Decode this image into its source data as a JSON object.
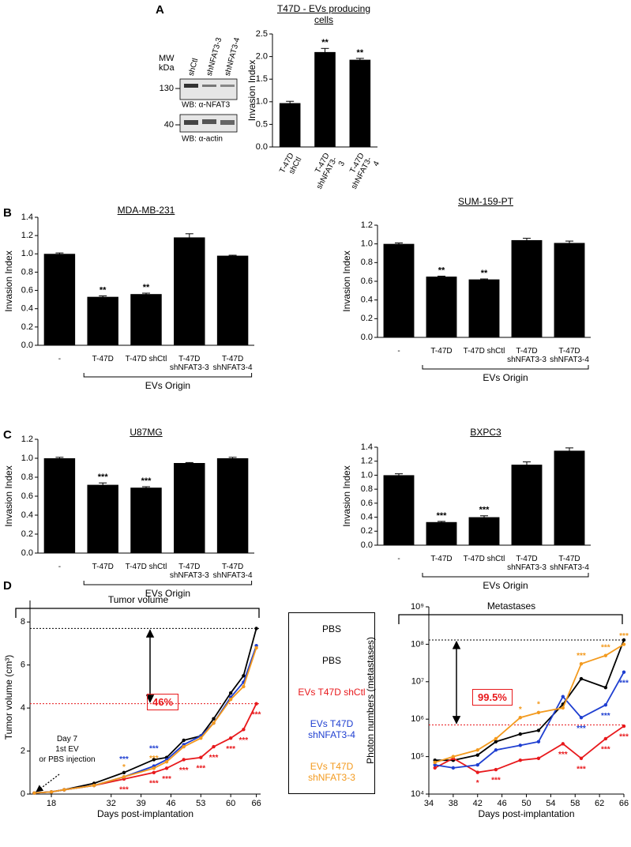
{
  "panels": [
    "A",
    "B",
    "C",
    "D"
  ],
  "blot": {
    "mw": "MW",
    "kda": "kDa",
    "marker_high": "130",
    "marker_low": "40",
    "lanes": [
      "shCtl",
      "shNFAT3-3",
      "shNFAT3-4"
    ],
    "wb_top": "WB: α-NFAT3",
    "wb_bottom": "WB: α-actin"
  },
  "legend_title": "PBS",
  "chart_data": [
    {
      "type": "bar",
      "title": "T47D - EVs producing cells",
      "ylabel": "Invasion Index",
      "categories": [
        "T-47D shCtl",
        "T-47D shNFAT3-3",
        "T-47D shNFAT3-4"
      ],
      "values": [
        0.97,
        2.1,
        1.93
      ],
      "errors": [
        0.04,
        0.08,
        0.03
      ],
      "significance": [
        null,
        "**",
        "**"
      ],
      "color": "#000000",
      "ylim": [
        0,
        2.5
      ],
      "yticks": [
        {
          "value": 0,
          "label": "0.0"
        },
        {
          "value": 0.5,
          "label": "0.5"
        },
        {
          "value": 1,
          "label": "1.0"
        },
        {
          "value": 1.5,
          "label": "1.5"
        },
        {
          "value": 2,
          "label": "2.0"
        },
        {
          "value": 2.5,
          "label": "2.5"
        }
      ]
    },
    {
      "type": "bar",
      "title": "MDA-MB-231",
      "ylabel": "Invasion Index",
      "group_label": "EVs Origin",
      "categories": [
        "-",
        "T-47D",
        "T-47D shCtl",
        "T-47D shNFAT3-3",
        "T-47D shNFAT3-4"
      ],
      "values": [
        1.0,
        0.53,
        0.56,
        1.18,
        0.98
      ],
      "errors": [
        0.01,
        0.01,
        0.01,
        0.04,
        0.005
      ],
      "significance": [
        null,
        "**",
        "**",
        null,
        null
      ],
      "color": "#000000",
      "ylim": [
        0,
        1.4
      ],
      "yticks": [
        {
          "value": 0,
          "label": "0.0"
        },
        {
          "value": 0.2,
          "label": "0.2"
        },
        {
          "value": 0.4,
          "label": "0.4"
        },
        {
          "value": 0.6,
          "label": "0.6"
        },
        {
          "value": 0.8,
          "label": "0.8"
        },
        {
          "value": 1,
          "label": "1.0"
        },
        {
          "value": 1.2,
          "label": "1.2"
        },
        {
          "value": 1.4,
          "label": "1.4"
        }
      ]
    },
    {
      "type": "bar",
      "title": "SUM-159-PT",
      "ylabel": "Invasion Index",
      "group_label": "EVs Origin",
      "categories": [
        "-",
        "T-47D",
        "T-47D shCtl",
        "T-47D shNFAT3-3",
        "T-47D shNFAT3-4"
      ],
      "values": [
        1.0,
        0.65,
        0.62,
        1.04,
        1.01
      ],
      "errors": [
        0.01,
        0.005,
        0.005,
        0.02,
        0.02
      ],
      "significance": [
        null,
        "**",
        "**",
        null,
        null
      ],
      "color": "#000000",
      "ylim": [
        0,
        1.2
      ],
      "yticks": [
        {
          "value": 0,
          "label": "0.0"
        },
        {
          "value": 0.2,
          "label": "0.2"
        },
        {
          "value": 0.4,
          "label": "0.4"
        },
        {
          "value": 0.6,
          "label": "0.6"
        },
        {
          "value": 0.8,
          "label": "0.8"
        },
        {
          "value": 1,
          "label": "1.0"
        },
        {
          "value": 1.2,
          "label": "1.2"
        }
      ]
    },
    {
      "type": "bar",
      "title": "U87MG",
      "ylabel": "Invasion Index",
      "group_label": "EVs Origin",
      "categories": [
        "-",
        "T-47D",
        "T-47D shCtl",
        "T-47D shNFAT3-3",
        "T-47D shNFAT3-4"
      ],
      "values": [
        1.0,
        0.72,
        0.69,
        0.95,
        1.0
      ],
      "errors": [
        0.01,
        0.02,
        0.01,
        0.005,
        0.01
      ],
      "significance": [
        null,
        "***",
        "***",
        null,
        null
      ],
      "color": "#000000",
      "ylim": [
        0,
        1.2
      ],
      "yticks": [
        {
          "value": 0,
          "label": "0.0"
        },
        {
          "value": 0.2,
          "label": "0.2"
        },
        {
          "value": 0.4,
          "label": "0.4"
        },
        {
          "value": 0.6,
          "label": "0.6"
        },
        {
          "value": 0.8,
          "label": "0.8"
        },
        {
          "value": 1,
          "label": "1.0"
        },
        {
          "value": 1.2,
          "label": "1.2"
        }
      ]
    },
    {
      "type": "bar",
      "title": "BXPC3",
      "ylabel": "Invasion Index",
      "group_label": "EVs Origin",
      "categories": [
        "-",
        "T-47D",
        "T-47D shCtl",
        "T-47D shNFAT3-3",
        "T-47D shNFAT3-4"
      ],
      "values": [
        1.0,
        0.33,
        0.4,
        1.15,
        1.35
      ],
      "errors": [
        0.02,
        0.01,
        0.02,
        0.04,
        0.04
      ],
      "significance": [
        null,
        "***",
        "***",
        null,
        null
      ],
      "color": "#000000",
      "ylim": [
        0,
        1.4
      ],
      "yticks": [
        {
          "value": 0,
          "label": "0.0"
        },
        {
          "value": 0.2,
          "label": "0.2"
        },
        {
          "value": 0.4,
          "label": "0.4"
        },
        {
          "value": 0.6,
          "label": "0.6"
        },
        {
          "value": 0.8,
          "label": "0.8"
        },
        {
          "value": 1,
          "label": "1.0"
        },
        {
          "value": 1.2,
          "label": "1.2"
        },
        {
          "value": 1.4,
          "label": "1.4"
        }
      ]
    },
    {
      "type": "line",
      "title": "Tumor volume",
      "xlabel": "Days post-implantation",
      "ylabel": "Tumor volume (cm³)",
      "annotation": "46%",
      "note": [
        "Day 7",
        "1st EV",
        "or PBS injection"
      ],
      "reference_lines": [
        {
          "value": 7.7,
          "color": "#000000"
        },
        {
          "value": 4.2,
          "color": "#e8191c"
        }
      ],
      "x": [
        14,
        18,
        21,
        28,
        35,
        42,
        45,
        49,
        53,
        56,
        60,
        63,
        66
      ],
      "xlim": [
        13,
        67
      ],
      "xticks": [
        18,
        32,
        39,
        46,
        53,
        60,
        66
      ],
      "ylim": [
        0,
        9
      ],
      "yticks": [
        0,
        2,
        4,
        6,
        8
      ],
      "series": [
        {
          "name": "PBS",
          "color": "#000000",
          "values": [
            0.05,
            0.1,
            0.2,
            0.5,
            1.0,
            1.6,
            1.7,
            2.5,
            2.7,
            3.5,
            4.7,
            5.5,
            7.7
          ],
          "significance": [
            null,
            null,
            null,
            null,
            null,
            null,
            null,
            null,
            null,
            null,
            null,
            null,
            null
          ]
        },
        {
          "name": "EVs T47D shCtl",
          "color": "#e8191c",
          "values": [
            0.05,
            0.1,
            0.2,
            0.4,
            0.7,
            1.0,
            1.2,
            1.6,
            1.7,
            2.2,
            2.6,
            3.0,
            4.2
          ],
          "significance": [
            null,
            null,
            null,
            null,
            "***",
            "***",
            "***",
            "***",
            "***",
            "***",
            "***",
            "***",
            "***"
          ]
        },
        {
          "name": "EVs T47D shNFAT3-4",
          "color": "#1f3fd1",
          "values": [
            0.05,
            0.1,
            0.2,
            0.4,
            0.8,
            1.3,
            1.6,
            2.3,
            2.7,
            3.3,
            4.5,
            5.2,
            6.9
          ],
          "significance": [
            null,
            null,
            null,
            null,
            "***",
            "***",
            null,
            null,
            null,
            null,
            null,
            null,
            null
          ]
        },
        {
          "name": "EVs T47D shNFAT3-3",
          "color": "#f39a1e",
          "values": [
            0.05,
            0.1,
            0.2,
            0.4,
            0.8,
            1.2,
            1.5,
            2.2,
            2.6,
            3.3,
            4.4,
            5.0,
            6.8
          ],
          "significance": [
            null,
            null,
            null,
            null,
            "*",
            "***",
            null,
            null,
            null,
            null,
            null,
            null,
            null
          ]
        }
      ]
    },
    {
      "type": "line",
      "title": "Metastases",
      "xlabel": "Days post-implantation",
      "ylabel": "Photon numbers (metastases)",
      "annotation": "99.5%",
      "log": true,
      "reference_lines": [
        {
          "value": 130000000,
          "color": "#000000"
        },
        {
          "value": 700000,
          "color": "#e8191c"
        }
      ],
      "x": [
        35,
        38,
        42,
        45,
        49,
        52,
        56,
        59,
        63,
        66
      ],
      "xlim": [
        34,
        66
      ],
      "xticks": [
        34,
        38,
        42,
        46,
        50,
        54,
        58,
        62,
        66
      ],
      "ylim": [
        10000,
        1000000000
      ],
      "yticks": [
        {
          "value": 10000,
          "label": "10⁴"
        },
        {
          "value": 100000,
          "label": "10⁵"
        },
        {
          "value": 1000000,
          "label": "10⁶"
        },
        {
          "value": 10000000,
          "label": "10⁷"
        },
        {
          "value": 100000000,
          "label": "10⁸"
        },
        {
          "value": 1000000000,
          "label": "10⁹"
        }
      ],
      "series": [
        {
          "color": "#000000",
          "values": [
            80000,
            80000,
            110000,
            250000,
            400000,
            500000,
            2500000,
            12000000,
            7000000,
            130000000
          ],
          "significance": [
            null,
            null,
            null,
            null,
            null,
            null,
            null,
            null,
            null,
            null
          ]
        },
        {
          "color": "#e8191c",
          "values": [
            50000,
            90000,
            38000,
            45000,
            80000,
            90000,
            220000,
            90000,
            300000,
            650000
          ],
          "significance": [
            null,
            null,
            "*",
            "***",
            null,
            null,
            "***",
            "***",
            "***",
            "***"
          ]
        },
        {
          "color": "#1f3fd1",
          "values": [
            60000,
            50000,
            60000,
            150000,
            200000,
            250000,
            4000000,
            1100000,
            2400000,
            18000000
          ],
          "significance": [
            null,
            null,
            null,
            null,
            null,
            null,
            null,
            "***",
            "***",
            "***"
          ]
        },
        {
          "color": "#f39a1e",
          "values": [
            70000,
            100000,
            150000,
            300000,
            1100000,
            1500000,
            2000000,
            30000000,
            50000000,
            100000000
          ],
          "significance": [
            null,
            null,
            null,
            null,
            "*",
            "*",
            null,
            "***",
            "***",
            "***"
          ]
        }
      ]
    }
  ]
}
